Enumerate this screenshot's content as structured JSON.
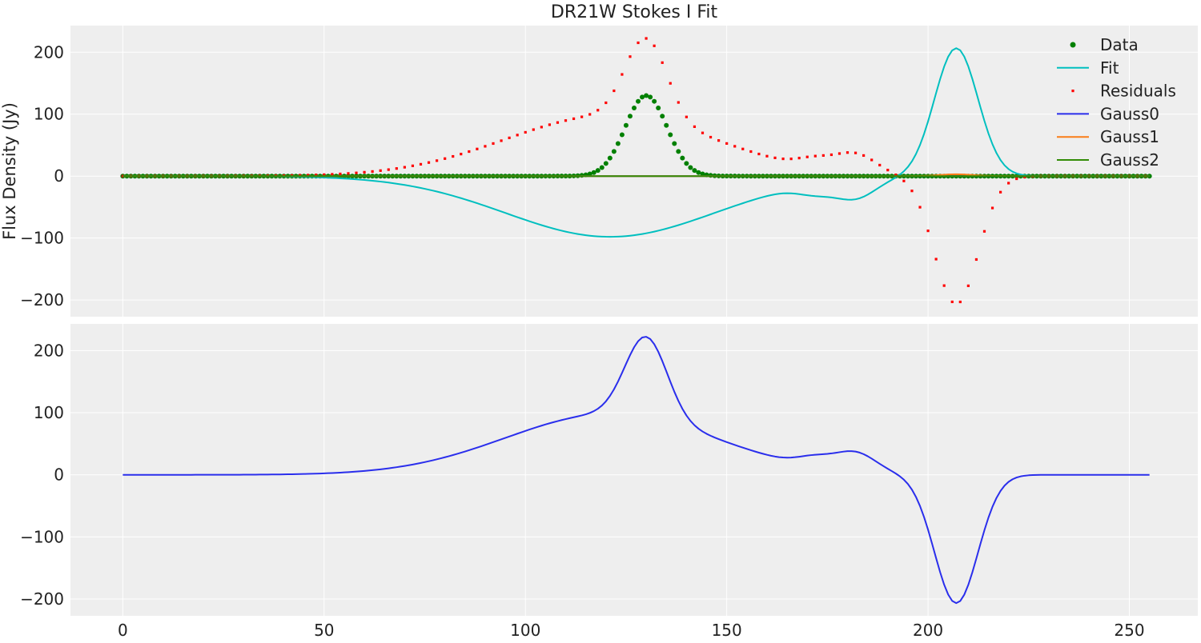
{
  "chart_data": [
    {
      "type": "line",
      "title": "DR21W Stokes I Fit",
      "xlabel": "",
      "ylabel": "Flux Density (Jy)",
      "xlim": [
        -13,
        267
      ],
      "ylim": [
        -227,
        243
      ],
      "xticks": [
        0,
        50,
        100,
        150,
        200,
        250
      ],
      "xtick_labels": [
        "0",
        "50",
        "100",
        "150",
        "200",
        "250"
      ],
      "yticks": [
        -200,
        -100,
        0,
        100,
        200
      ],
      "ytick_labels": [
        "−200",
        "−100",
        "0",
        "100",
        "200"
      ],
      "show_xtick_labels": false,
      "grid": true,
      "legend": "top-right",
      "series": [
        {
          "name": "Data",
          "kind": "scatter",
          "marker": "circle",
          "color": "#008000",
          "x_start": 0,
          "x_end": 255,
          "x_step": 1,
          "components": [
            {
              "amp": 130,
              "center": 130,
              "sigma": 5.2
            }
          ]
        },
        {
          "name": "Fit",
          "kind": "line",
          "color": "#00bfbf",
          "x_start": 0,
          "x_end": 255,
          "x_step": 1,
          "components": [
            {
              "amp": -98,
              "center": 121,
              "sigma": 26
            },
            {
              "amp": -14,
              "center": 172,
              "sigma": 4.5
            },
            {
              "amp": -30,
              "center": 182,
              "sigma": 5
            },
            {
              "amp": 207,
              "center": 207,
              "sigma": 5.4
            }
          ]
        },
        {
          "name": "Residuals",
          "kind": "scatter",
          "marker": "square",
          "color": "#ff0000",
          "x_start": 0,
          "x_end": 255,
          "x_step": 2,
          "components": [
            {
              "amp": 98,
              "center": 121,
              "sigma": 26
            },
            {
              "amp": 14,
              "center": 172,
              "sigma": 4.5
            },
            {
              "amp": 30,
              "center": 182,
              "sigma": 5
            },
            {
              "amp": -207,
              "center": 207,
              "sigma": 5.4
            },
            {
              "amp": 130,
              "center": 130,
              "sigma": 5.2
            }
          ]
        },
        {
          "name": "Gauss0",
          "kind": "line",
          "color": "#2a2eec",
          "x_start": 0,
          "x_end": 255,
          "x_step": 1,
          "components": [
            {
              "amp": 0,
              "center": 128,
              "sigma": 10
            }
          ]
        },
        {
          "name": "Gauss1",
          "kind": "line",
          "color": "#fa7c17",
          "x_start": 0,
          "x_end": 255,
          "x_step": 1,
          "components": [
            {
              "amp": 3,
              "center": 207,
              "sigma": 4
            }
          ]
        },
        {
          "name": "Gauss2",
          "kind": "line",
          "color": "#328c06",
          "x_start": 0,
          "x_end": 255,
          "x_step": 1,
          "components": [
            {
              "amp": 0,
              "center": 128,
              "sigma": 10
            }
          ]
        }
      ]
    },
    {
      "type": "line",
      "title": "",
      "xlabel": "",
      "ylabel": "",
      "xlim": [
        -13,
        267
      ],
      "ylim": [
        -227,
        243
      ],
      "xticks": [
        0,
        50,
        100,
        150,
        200,
        250
      ],
      "xtick_labels": [
        "0",
        "50",
        "100",
        "150",
        "200",
        "250"
      ],
      "yticks": [
        -200,
        -100,
        0,
        100,
        200
      ],
      "ytick_labels": [
        "−200",
        "−100",
        "0",
        "100",
        "200"
      ],
      "show_xtick_labels": true,
      "grid": true,
      "legend": "none",
      "series": [
        {
          "name": "",
          "kind": "line",
          "color": "#2a2eec",
          "x_start": 0,
          "x_end": 255,
          "x_step": 1,
          "components": [
            {
              "amp": 98,
              "center": 121,
              "sigma": 26
            },
            {
              "amp": 14,
              "center": 172,
              "sigma": 4.5
            },
            {
              "amp": 30,
              "center": 182,
              "sigma": 5
            },
            {
              "amp": -207,
              "center": 207,
              "sigma": 5.4
            },
            {
              "amp": 130,
              "center": 130,
              "sigma": 5.2
            }
          ]
        }
      ]
    }
  ]
}
